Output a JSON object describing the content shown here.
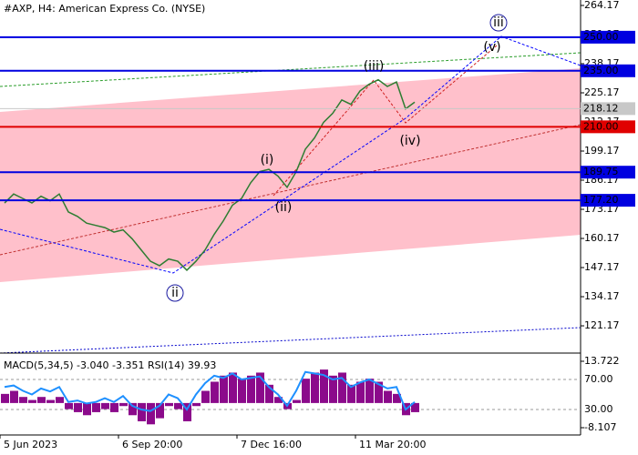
{
  "chart_data": [
    {
      "type": "line",
      "title": "#AXP, H4:  American Express Co. (NYSE)",
      "categories": [
        "5 Jun 2023",
        null,
        null,
        null,
        null,
        null,
        null,
        null,
        null,
        null,
        null,
        null,
        null,
        "6 Sep 20:00",
        null,
        null,
        null,
        null,
        null,
        null,
        null,
        null,
        null,
        null,
        null,
        null,
        "7 Dec 16:00",
        null,
        null,
        null,
        null,
        null,
        null,
        null,
        null,
        null,
        null,
        null,
        null,
        "11 Mar 20:00",
        null,
        null,
        null,
        null,
        null,
        null
      ],
      "values": [
        176,
        180,
        178,
        176,
        179,
        177,
        180,
        172,
        170,
        167,
        166,
        165,
        163,
        164,
        160,
        155,
        150,
        148,
        151,
        150,
        146,
        150,
        155,
        162,
        168,
        175,
        178,
        185,
        190,
        191,
        188,
        183,
        190,
        200,
        205,
        212,
        216,
        222,
        220,
        226,
        229,
        231,
        228,
        230,
        218,
        221
      ],
      "color": "#2e7d32",
      "ylim": [
        109,
        266.6
      ],
      "yticks": [
        264.17,
        251.17,
        238.17,
        225.17,
        212.17,
        199.17,
        186.17,
        173.17,
        160.17,
        147.17,
        134.17,
        121.17
      ],
      "levels": [
        {
          "value": 250,
          "label": "250.00",
          "color": "#0000e0"
        },
        {
          "value": 235,
          "label": "235.00",
          "color": "#0000e0"
        },
        {
          "value": 218.12,
          "label": "218.12",
          "color": "#c8c8c8"
        },
        {
          "value": 210,
          "label": "210.00",
          "color": "#e00000"
        },
        {
          "value": 189.75,
          "label": "189.75",
          "color": "#0000e0"
        },
        {
          "value": 177.2,
          "label": "177.20",
          "color": "#0000e0"
        }
      ],
      "annotations": [
        "(i)",
        "(ii)",
        "(iii)",
        "(iv)",
        "(v)",
        "ii",
        "iii"
      ]
    },
    {
      "type": "macd",
      "title": "MACD(5,34,5) -3.040 -3.351 RSI(14) 39.93",
      "series": [
        {
          "color": "#8b0a8b",
          "values": [
            3,
            4,
            2,
            1,
            2,
            1,
            2,
            -2,
            -3,
            -4,
            -3,
            -2,
            -3,
            -1,
            -4,
            -6,
            -7,
            -5,
            -1,
            -2,
            -6,
            -1,
            4,
            7,
            9,
            10,
            8,
            9,
            10,
            6,
            2,
            -2,
            1,
            8,
            10,
            11,
            9,
            10,
            6,
            7,
            8,
            7,
            4,
            3,
            -4,
            -3
          ]
        },
        {
          "color": "#1e90ff",
          "axis": "y2",
          "values": [
            60,
            62,
            55,
            50,
            58,
            54,
            60,
            40,
            42,
            38,
            40,
            45,
            40,
            48,
            35,
            30,
            28,
            35,
            50,
            45,
            30,
            50,
            65,
            75,
            72,
            78,
            70,
            72,
            74,
            60,
            50,
            35,
            55,
            80,
            78,
            76,
            70,
            72,
            60,
            66,
            70,
            64,
            58,
            60,
            30,
            40
          ]
        }
      ],
      "ylim": [
        -10.5,
        15.22
      ],
      "yticks": [
        13.722,
        -8.107
      ],
      "y2lim": [
        -3.94,
        100.3
      ],
      "y2ticks": [
        {
          "value": 70,
          "label": "70.00"
        },
        {
          "value": 30,
          "label": "30.00"
        }
      ],
      "grid": true
    }
  ]
}
